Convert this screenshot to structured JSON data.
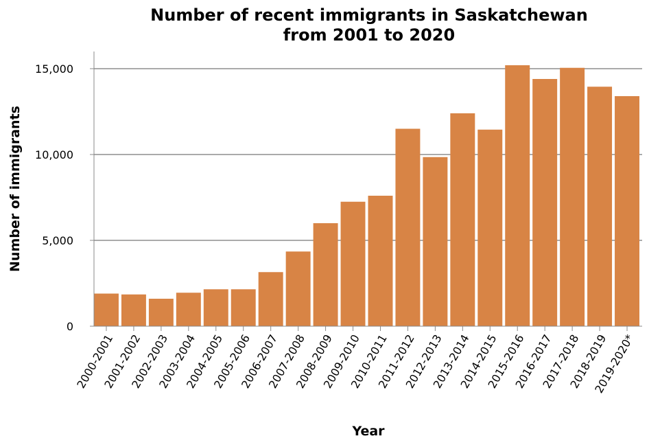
{
  "chart_data": {
    "type": "bar",
    "title_lines": [
      "Number of recent immigrants in Saskatchewan",
      "from 2001 to 2020"
    ],
    "xlabel": "Year",
    "ylabel": "Number of immigrants",
    "categories": [
      "2000-2001",
      "2001-2002",
      "2002-2003",
      "2003-2004",
      "2004-2005",
      "2005-2006",
      "2006-2007",
      "2007-2008",
      "2008-2009",
      "2009-2010",
      "2010-2011",
      "2011-2012",
      "2012-2013",
      "2013-2014",
      "2014-2015",
      "2015-2016",
      "2016-2017",
      "2017-2018",
      "2018-2019",
      "2019-2020*"
    ],
    "values": [
      1900,
      1850,
      1600,
      1950,
      2150,
      2150,
      3150,
      4350,
      6000,
      7250,
      7600,
      11500,
      9850,
      12400,
      11450,
      15200,
      14400,
      15050,
      13950,
      13400
    ],
    "ylim": [
      0,
      16000
    ],
    "yticks": [
      0,
      5000,
      10000,
      15000
    ],
    "ytick_labels": [
      "0",
      "5,000",
      "10,000",
      "15,000"
    ],
    "bar_color": "#d88445",
    "grid": true,
    "legend": "none"
  }
}
